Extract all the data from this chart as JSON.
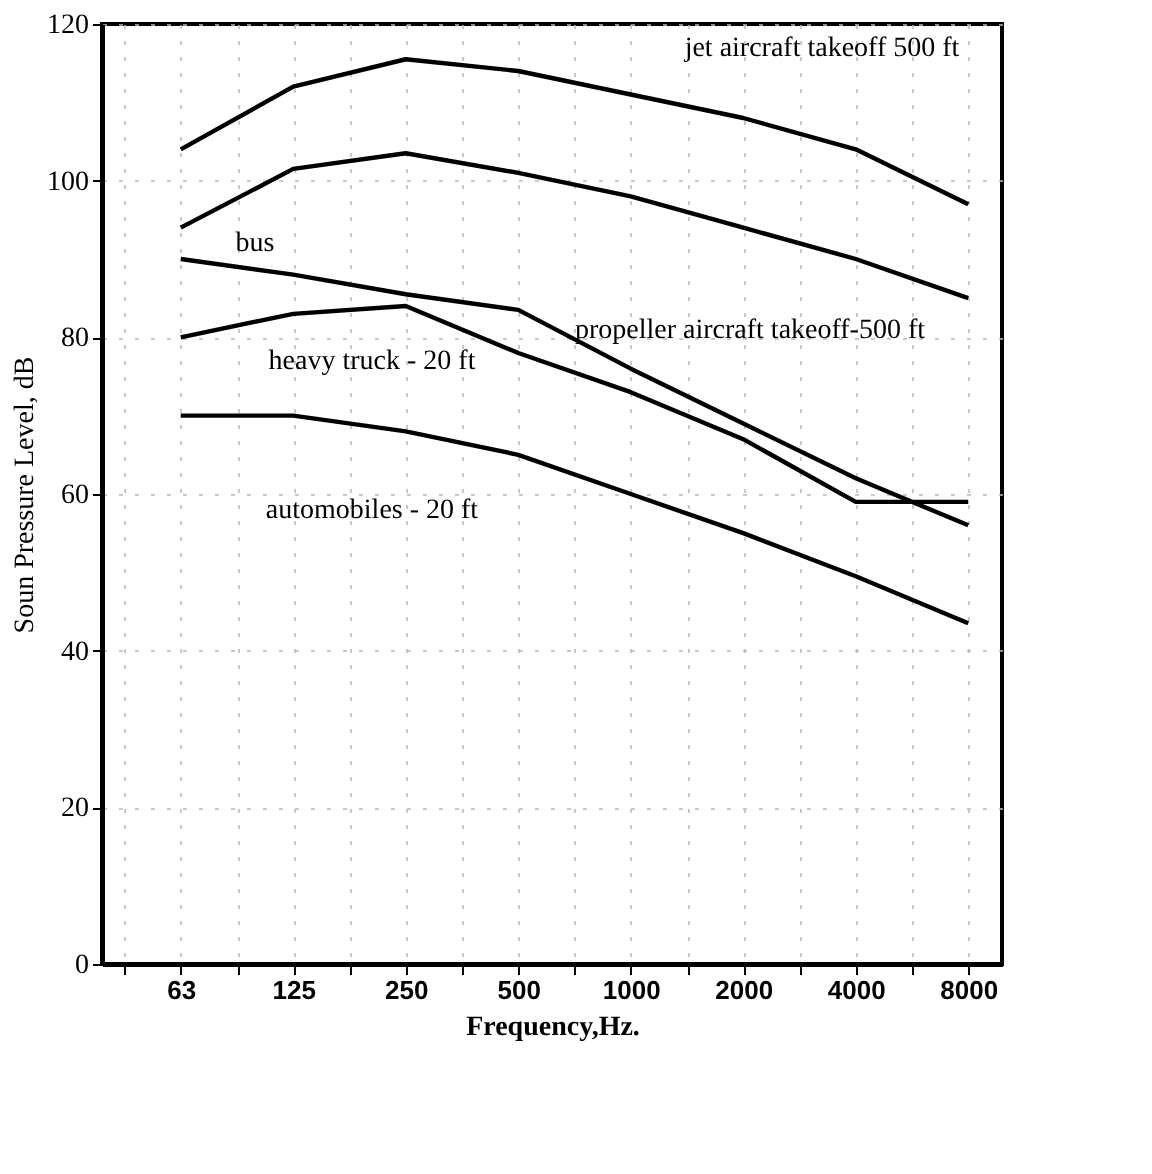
{
  "chart_data": {
    "type": "line",
    "xlabel": "Frequency,Hz.",
    "ylabel": "Soun  Pressure Level, dB",
    "categories": [
      "63",
      "125",
      "250",
      "500",
      "1000",
      "2000",
      "4000",
      "8000"
    ],
    "series": [
      {
        "color": "#000000",
        "values": [
          104,
          112,
          115.5,
          114,
          111,
          108,
          104,
          97
        ]
      },
      {
        "color": "#000000",
        "values": [
          94,
          101.5,
          103.5,
          101,
          98,
          94,
          90,
          85
        ]
      },
      {
        "color": "#000000",
        "values": [
          90,
          88,
          85.5,
          83.5,
          76,
          69,
          62,
          56
        ]
      },
      {
        "color": "#000000",
        "values": [
          80,
          83,
          84,
          78,
          73,
          67,
          59,
          59
        ]
      },
      {
        "color": "#000000",
        "values": [
          70,
          70,
          68,
          65,
          60,
          55,
          49.5,
          43.5
        ]
      }
    ],
    "ylim": [
      0,
      120
    ],
    "yticks": [
      0,
      20,
      40,
      60,
      80,
      100,
      120
    ],
    "grid": true,
    "marker": "none",
    "line_style": "solid",
    "annotations": [
      "jet aircraft takeoff 500 ft",
      "propeller aircraft takeoff-500 ft",
      "bus",
      "heavy truck - 20 ft",
      "automobiles - 20 ft"
    ]
  }
}
